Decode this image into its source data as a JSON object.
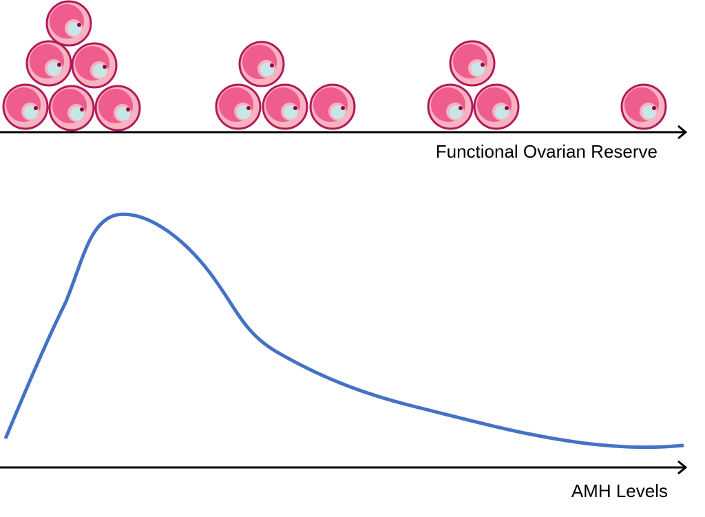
{
  "axes": [
    {
      "label": "Functional Ovarian Reserve"
    },
    {
      "label": "AMH Levels"
    }
  ]
}
